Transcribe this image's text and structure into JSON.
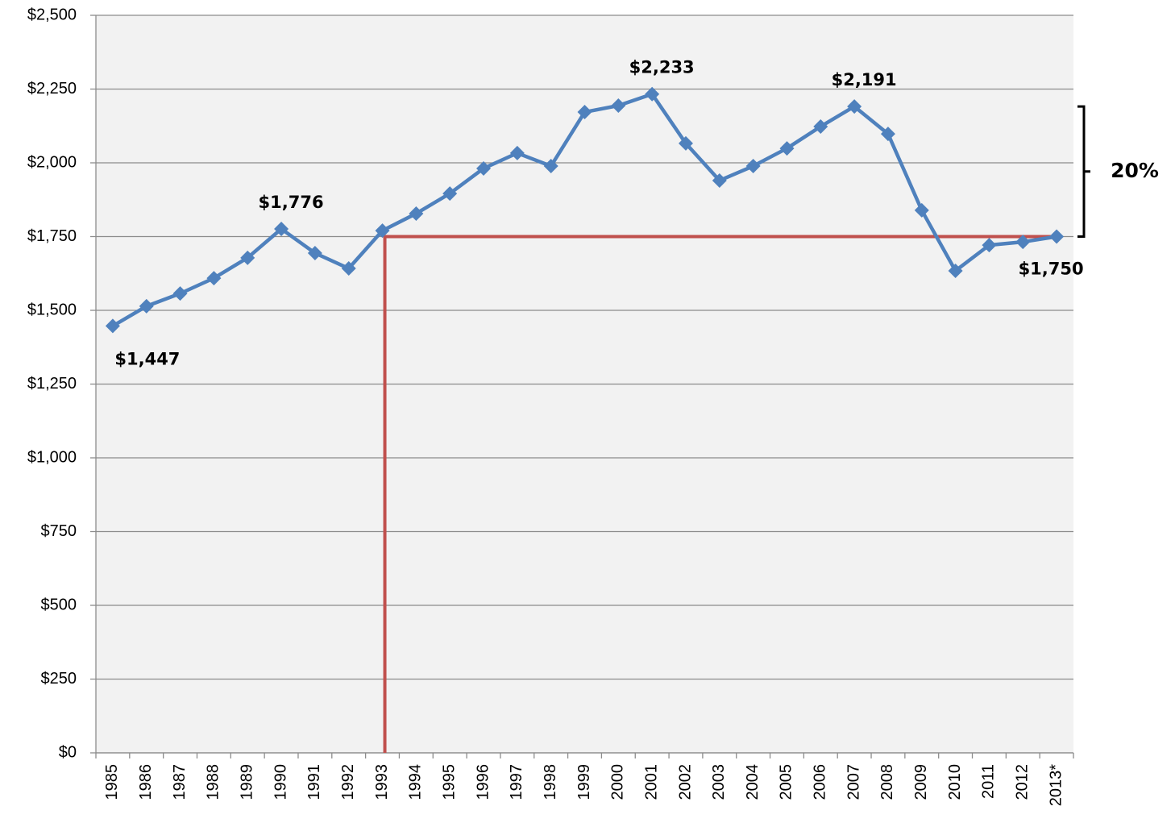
{
  "chart_data": {
    "type": "line",
    "categories": [
      "1985",
      "1986",
      "1987",
      "1988",
      "1989",
      "1990",
      "1991",
      "1992",
      "1993",
      "1994",
      "1995",
      "1996",
      "1997",
      "1998",
      "1999",
      "2000",
      "2001",
      "2002",
      "2003",
      "2004",
      "2005",
      "2006",
      "2007",
      "2008",
      "2009",
      "2010",
      "2011",
      "2012",
      "2013*"
    ],
    "values": [
      1447,
      1514,
      1557,
      1609,
      1678,
      1776,
      1694,
      1642,
      1770,
      1828,
      1896,
      1981,
      2033,
      1989,
      2172,
      2194,
      2233,
      2066,
      1940,
      1989,
      2049,
      2123,
      2191,
      2098,
      1839,
      1634,
      1721,
      1732,
      1750
    ],
    "value_labels": [
      "$1,447",
      null,
      null,
      null,
      null,
      "$1,776",
      null,
      null,
      null,
      null,
      null,
      null,
      null,
      null,
      null,
      null,
      "$2,233",
      null,
      null,
      null,
      null,
      null,
      "$2,191",
      null,
      null,
      null,
      null,
      null,
      "$1,750"
    ],
    "color": "#4f81bd",
    "ylim": [
      0,
      2500
    ],
    "yticks": [
      {
        "value": 0,
        "label": "$0"
      },
      {
        "value": 250,
        "label": "$250"
      },
      {
        "value": 500,
        "label": "$500"
      },
      {
        "value": 750,
        "label": "$750"
      },
      {
        "value": 1000,
        "label": "$1,000"
      },
      {
        "value": 1250,
        "label": "$1,250"
      },
      {
        "value": 1500,
        "label": "$1,500"
      },
      {
        "value": 1750,
        "label": "$1,750"
      },
      {
        "value": 2000,
        "label": "$2,000"
      },
      {
        "value": 2250,
        "label": "$2,250"
      },
      {
        "value": 2500,
        "label": "$2,500"
      }
    ],
    "grid": true,
    "reference": {
      "x": "1993",
      "y": 1750,
      "color": "#c0504d"
    },
    "bracket": {
      "label": "20%",
      "from": 1750,
      "to": 2191
    }
  }
}
